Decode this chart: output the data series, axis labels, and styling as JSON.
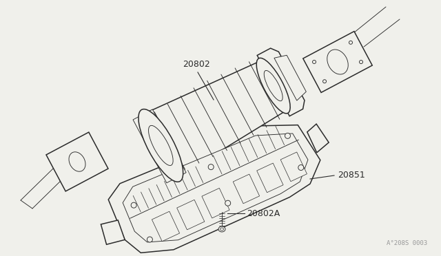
{
  "bg_color": "#f0f0eb",
  "line_color": "#2a2a2a",
  "label_color": "#2a2a2a",
  "watermark_color": "#999999",
  "watermark": "A°208S 0003",
  "label_20802": [
    0.305,
    0.275
  ],
  "label_20851": [
    0.59,
    0.51
  ],
  "label_20802A": [
    0.42,
    0.72
  ],
  "lw_main": 1.1,
  "lw_thin": 0.65,
  "lw_detail": 0.5
}
